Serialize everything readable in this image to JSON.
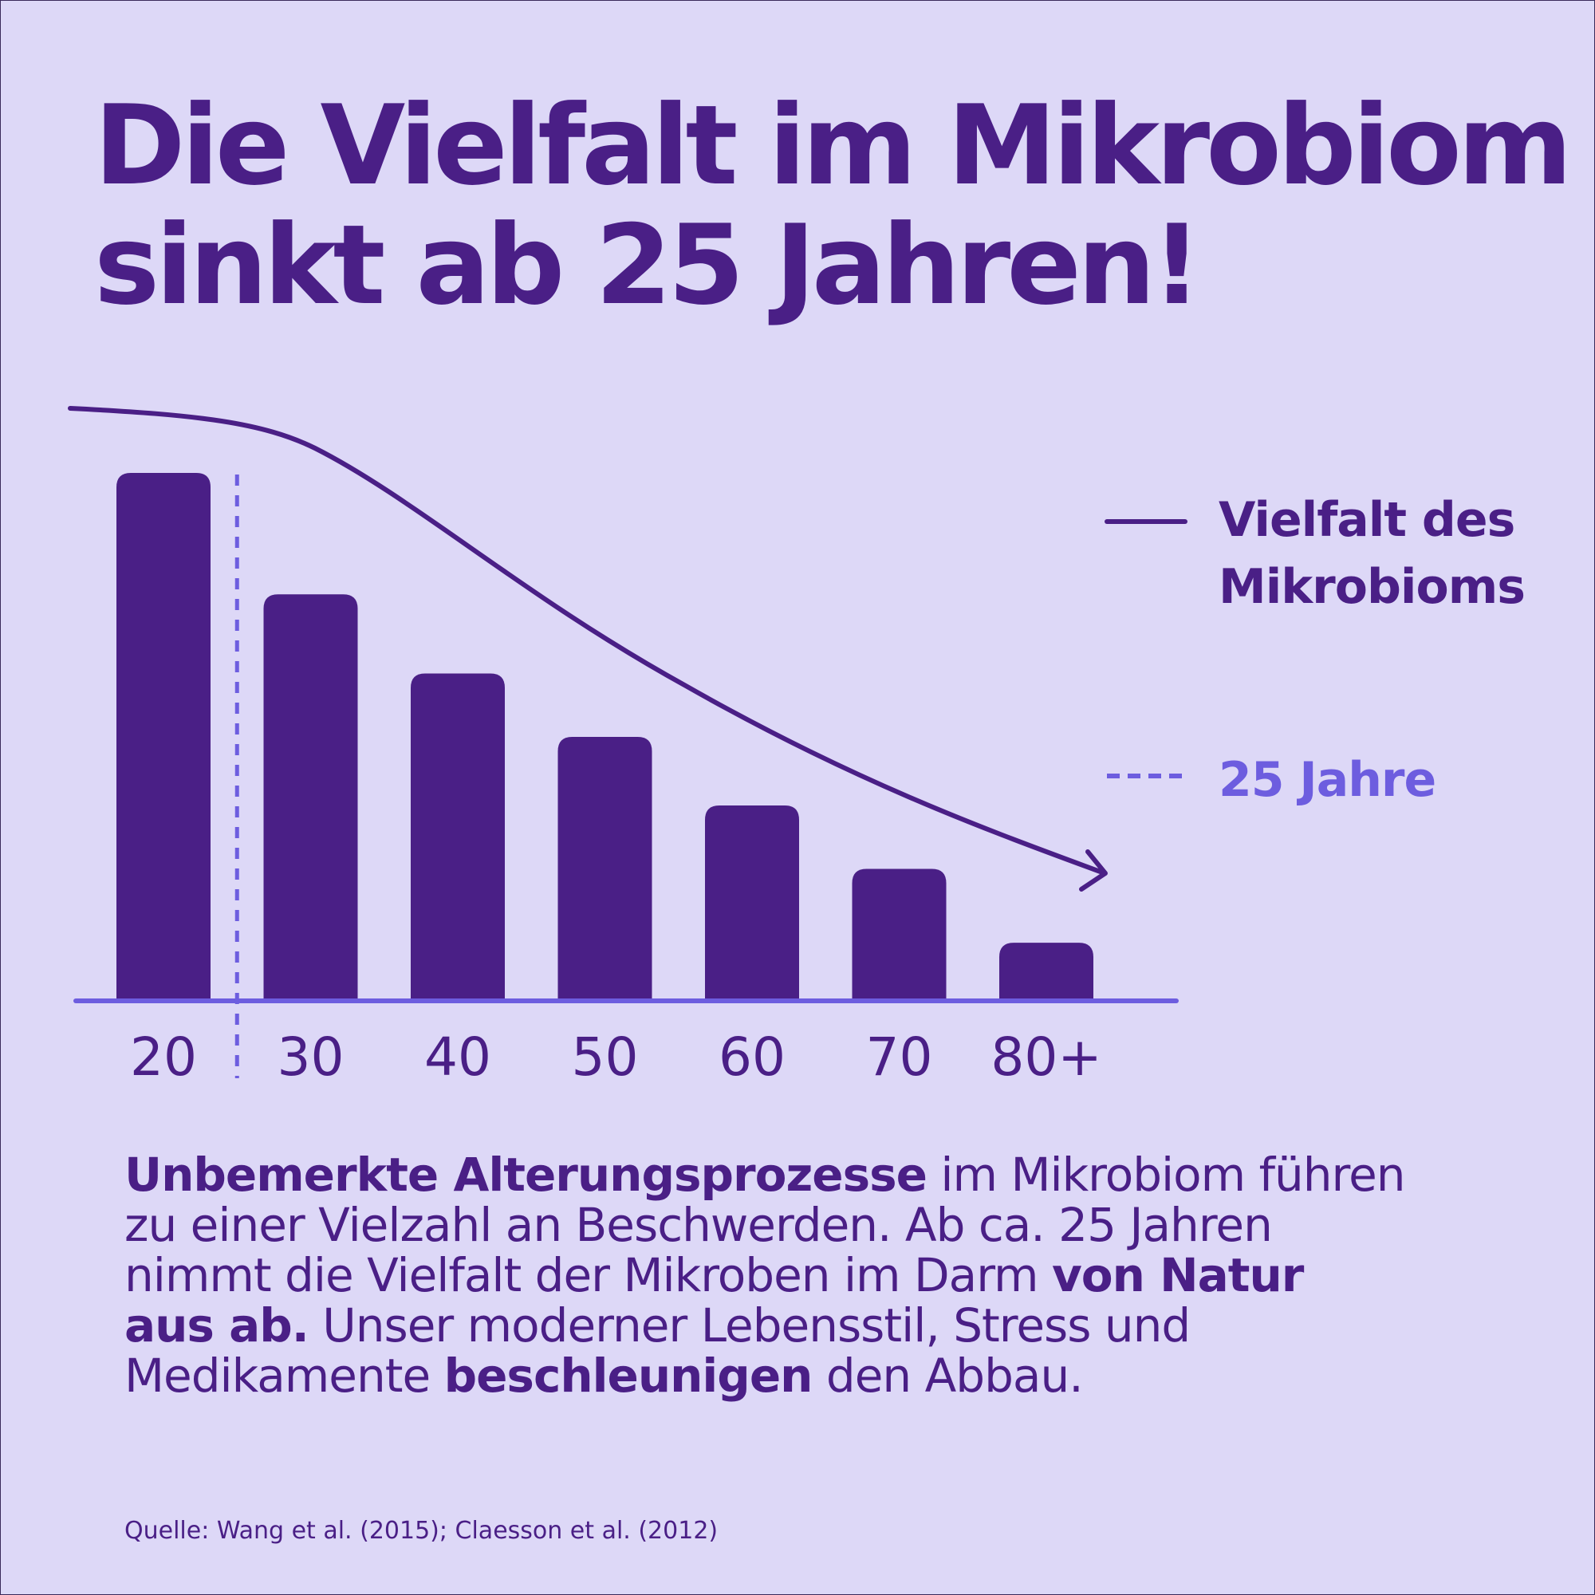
{
  "title": {
    "line1": "Die Vielfalt im Mikrobiom",
    "line2": "sinkt ab 25 Jahren!"
  },
  "chart_data": {
    "type": "bar",
    "categories": [
      "20",
      "30",
      "40",
      "50",
      "60",
      "70",
      "80+"
    ],
    "values": [
      100,
      77,
      62,
      50,
      37,
      25,
      11
    ],
    "ylim": [
      0,
      100
    ],
    "xlabel": "",
    "ylabel": "",
    "grid": false,
    "series": [
      {
        "name": "Vielfalt des Mikrobioms",
        "values": [
          100,
          77,
          62,
          50,
          37,
          25,
          11
        ]
      }
    ],
    "marker_line": {
      "label": "25 Jahre",
      "x": 25,
      "style": "dashed"
    },
    "legend": {
      "placement": "right",
      "entries": [
        {
          "label_line1": "Vielfalt des",
          "label_line2": "Mikrobioms",
          "style": "solid"
        },
        {
          "label": "25 Jahre",
          "style": "dashed"
        }
      ]
    },
    "colors": {
      "bars": "#4a1f86",
      "trend_line": "#4a1f86",
      "axis": "#6d5ddf",
      "marker_line": "#6d5ddf",
      "tick_labels": "#4a1f86"
    }
  },
  "body": {
    "line1_bold": "Unbemerkte Alterungsprozesse",
    "line1_rest": " im Mikrobiom führen",
    "line2": "zu einer Vielzahl an Beschwerden. Ab ca. 25 Jahren",
    "line3_rest": "nimmt die Vielfalt der Mikroben im Darm ",
    "line3_bold": "von Natur",
    "line4_bold": "aus ab.",
    "line4_rest": " Unser moderner Lebensstil, Stress und",
    "line5_start": "Medikamente ",
    "line5_bold": "beschleunigen",
    "line5_rest": " den Abbau."
  },
  "source": "Quelle: Wang et al. (2015); Claesson et al. (2012)",
  "colors": {
    "background": "#ddd8f7",
    "primary": "#4a1f86",
    "accent": "#6d5ddf"
  }
}
